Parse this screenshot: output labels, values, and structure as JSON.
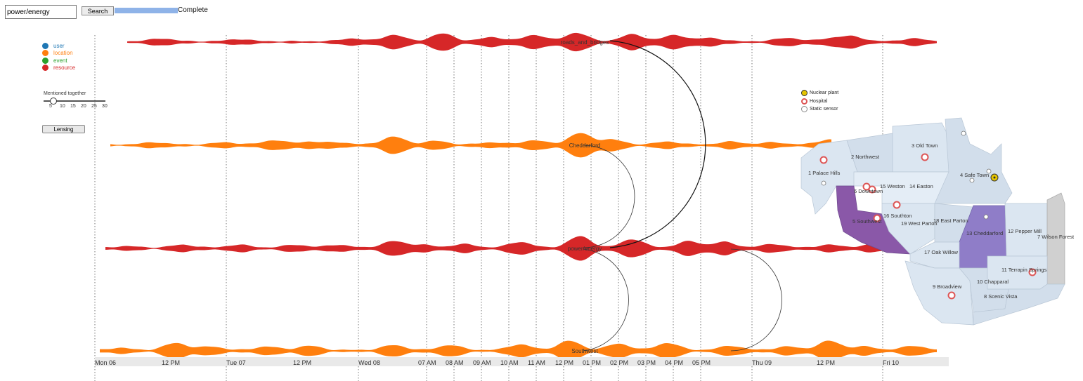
{
  "search": {
    "value": "power/energy",
    "button_label": "Search",
    "progress_label": "Complete",
    "progress_fraction": 1.0
  },
  "legend": [
    {
      "label": "user",
      "color": "#1f77b4"
    },
    {
      "label": "location",
      "color": "#ff7f0e"
    },
    {
      "label": "event",
      "color": "#2ca02c"
    },
    {
      "label": "resource",
      "color": "#d62728"
    }
  ],
  "slider": {
    "label": "Mentioned together",
    "ticks": [
      "5",
      "10",
      "15",
      "20",
      "25",
      "30"
    ],
    "value": 5
  },
  "lensing_button_label": "Lensing",
  "streams": [
    {
      "label": "roads_and_bridges",
      "type": "resource"
    },
    {
      "label": "Cheddarford",
      "type": "location"
    },
    {
      "label": "power/energy",
      "type": "resource"
    },
    {
      "label": "Southwest",
      "type": "location"
    }
  ],
  "time_axis": {
    "labels": [
      "Mon 06",
      "12 PM",
      "Tue 07",
      "12 PM",
      "Wed 08",
      "07 AM",
      "08 AM",
      "09 AM",
      "10 AM",
      "11 AM",
      "12 PM",
      "01 PM",
      "02 PM",
      "03 PM",
      "04 PM",
      "05 PM",
      "Thu 09",
      "12 PM",
      "Fri 10"
    ]
  },
  "map_legend": [
    {
      "label": "Nuclear plant",
      "icon": "nuclear-icon"
    },
    {
      "label": "Hospital",
      "icon": "hospital-icon"
    },
    {
      "label": "Static sensor",
      "icon": "sensor-icon"
    }
  ],
  "map_regions": [
    {
      "label": "1 Palace Hills"
    },
    {
      "label": "2 Northwest"
    },
    {
      "label": "3 Old Town"
    },
    {
      "label": "4 Safe Town"
    },
    {
      "label": "5 Southwest",
      "highlighted": true
    },
    {
      "label": "6 Downtown"
    },
    {
      "label": "7 Wilson Forest"
    },
    {
      "label": "8 Scenic Vista"
    },
    {
      "label": "9 Broadview"
    },
    {
      "label": "10 Chapparal"
    },
    {
      "label": "11 Terrapin Springs"
    },
    {
      "label": "12 Pepper Mill"
    },
    {
      "label": "13 Cheddarford",
      "highlighted": true
    },
    {
      "label": "14 Easton"
    },
    {
      "label": "15 Weston"
    },
    {
      "label": "16 Southton"
    },
    {
      "label": "17 Oak Willow"
    },
    {
      "label": "18 East Parton"
    },
    {
      "label": "19 West Parton"
    }
  ]
}
